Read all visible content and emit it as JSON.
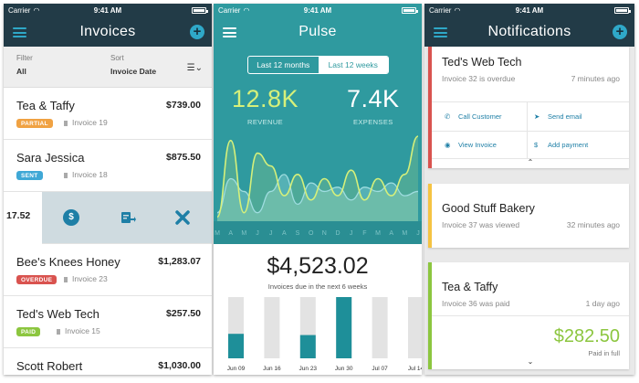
{
  "status": {
    "carrier": "Carrier",
    "time": "9:41 AM"
  },
  "invoices": {
    "title": "Invoices",
    "filter_label": "Filter",
    "filter_value": "All",
    "sort_label": "Sort",
    "sort_value": "Invoice Date",
    "rows": [
      {
        "name": "Tea & Taffy",
        "amount": "$739.00",
        "status": "PARTIAL",
        "status_color": "#f0a243",
        "invoice": "Invoice 19"
      },
      {
        "name": "Sara Jessica",
        "amount": "$875.50",
        "status": "SENT",
        "status_color": "#3fa8d6",
        "invoice": "Invoice 18"
      },
      {
        "name": "Bee's Knees Honey",
        "amount": "$1,283.07",
        "status": "OVERDUE",
        "status_color": "#d9534f",
        "invoice": "Invoice 23"
      },
      {
        "name": "Ted's Web Tech",
        "amount": "$257.50",
        "status": "PAID",
        "status_color": "#8cc63f",
        "invoice": "Invoice 15"
      },
      {
        "name": "Scott Robert",
        "amount": "$1,030.00",
        "status": "",
        "status_color": "#d9534f",
        "invoice": ""
      }
    ],
    "swiped_amount": "17.52",
    "swipe_actions": [
      "dollar-icon",
      "send-invoice-icon",
      "delete-x-icon"
    ]
  },
  "pulse": {
    "title": "Pulse",
    "seg_left": "Last 12 months",
    "seg_right": "Last 12 weeks",
    "revenue_value": "12.8K",
    "revenue_label": "REVENUE",
    "expenses_value": "7.4K",
    "expenses_label": "EXPENSES",
    "due_amount": "$4,523.02",
    "due_label": "Invoices due in the next 6 weeks"
  },
  "chart_data": [
    {
      "type": "area",
      "x": [
        "M",
        "A",
        "M",
        "J",
        "J",
        "A",
        "S",
        "O",
        "N",
        "D",
        "J",
        "F",
        "M",
        "A",
        "M",
        "J"
      ],
      "series": [
        {
          "values": [
            0.5,
            9.5,
            1,
            8,
            6.5,
            3,
            5.5,
            2.5,
            5,
            3,
            6,
            2.5,
            5,
            3,
            5.5,
            10
          ]
        },
        {
          "values": [
            1,
            5,
            3.5,
            1,
            3.5,
            5.5,
            2,
            4.5,
            3.5,
            4,
            2.5,
            4,
            3.5,
            4.5,
            3,
            3.5
          ]
        }
      ],
      "colors": {
        "revenue": "#d6f07a",
        "expenses": "#9fdde0"
      }
    },
    {
      "type": "bar",
      "categories": [
        "Jun 09",
        "Jun 16",
        "Jun 23",
        "Jun 30",
        "Jul 07",
        "Jul 14"
      ],
      "values": [
        0.4,
        0,
        0.38,
        1,
        0,
        0
      ],
      "max": 1,
      "colors": {
        "fill": "#1e8f99",
        "track": "#e3e3e3"
      }
    }
  ],
  "notifications": {
    "title": "Notifications",
    "cards": [
      {
        "title": "Ted's Web Tech",
        "subtitle": "Invoice 32 is overdue",
        "time": "7 minutes ago",
        "color": "#d9534f",
        "actions": [
          {
            "icon": "phone-icon",
            "label": "Call Customer"
          },
          {
            "icon": "send-icon",
            "label": "Send email"
          },
          {
            "icon": "eye-icon",
            "label": "View Invoice"
          },
          {
            "icon": "dollar-icon",
            "label": "Add payment"
          }
        ]
      },
      {
        "title": "Good Stuff Bakery",
        "subtitle": "Invoice 37 was viewed",
        "time": "32 minutes ago",
        "color": "#f5c342"
      },
      {
        "title": "Tea & Taffy",
        "subtitle": "Invoice 36 was paid",
        "time": "1 day ago",
        "color": "#8cc63f",
        "amount": "$282.50",
        "amount_label": "Paid in full"
      }
    ]
  }
}
